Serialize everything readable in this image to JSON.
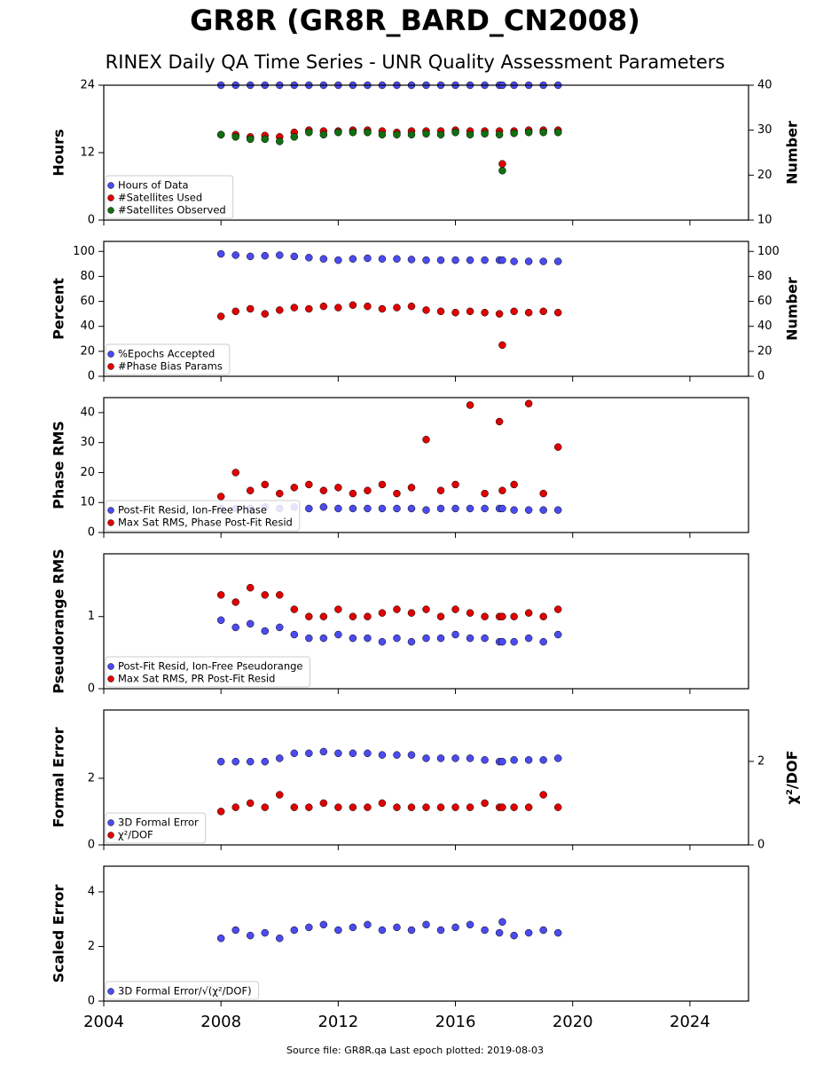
{
  "title": "GR8R (GR8R_BARD_CN2008)",
  "subtitle": "RINEX Daily QA Time Series - UNR Quality Assessment Parameters",
  "footer": "Source file: GR8R.qa Last epoch plotted: 2019-08-03",
  "chart_data": [
    {
      "type": "scatter",
      "ylabel": "Hours",
      "y2label": "Number",
      "legend": "lower left",
      "x": [
        2008.0,
        2008.5,
        2009.0,
        2009.5,
        2010.0,
        2010.5,
        2011.0,
        2011.5,
        2012.0,
        2012.5,
        2013.0,
        2013.5,
        2014.0,
        2014.5,
        2015.0,
        2015.5,
        2016.0,
        2016.5,
        2017.0,
        2017.5,
        2017.6,
        2018.0,
        2018.5,
        2019.0,
        2019.5
      ],
      "xlim": [
        2004,
        2026
      ],
      "xticks": [
        2004,
        2008,
        2012,
        2016,
        2020,
        2024
      ],
      "ylim": [
        0,
        24
      ],
      "yticks": [
        0,
        12,
        24
      ],
      "y2lim": [
        10,
        40
      ],
      "y2ticks": [
        10,
        20,
        30,
        40
      ],
      "series": [
        {
          "name": "Hours of Data",
          "color": "#4b4bf0",
          "values": [
            24,
            24,
            24,
            24,
            24,
            24,
            24,
            24,
            24,
            24,
            24,
            24,
            24,
            24,
            24,
            24,
            24,
            24,
            24,
            24,
            24,
            24,
            24,
            24,
            24
          ]
        },
        {
          "name": "#Satellites Used",
          "color": "#e00000",
          "axis": "y2",
          "values": [
            29,
            29,
            28.5,
            28.8,
            28.5,
            29.5,
            30,
            29.8,
            29.8,
            30,
            30,
            29.8,
            29.5,
            29.8,
            29.8,
            29.8,
            30,
            29.8,
            29.8,
            29.8,
            22.5,
            29.8,
            30,
            30,
            30
          ]
        },
        {
          "name": "#Satellites Observed",
          "color": "#107010",
          "axis": "y2",
          "values": [
            29,
            28.5,
            28,
            28,
            27.5,
            28.5,
            29.5,
            29,
            29.5,
            29.5,
            29.5,
            29,
            29,
            29,
            29.2,
            29,
            29.5,
            29,
            29.2,
            29,
            21,
            29.3,
            29.5,
            29.5,
            29.5
          ]
        }
      ]
    },
    {
      "type": "scatter",
      "ylabel": "Percent",
      "y2label": "Number",
      "legend": "lower left",
      "x": [
        2008.0,
        2008.5,
        2009.0,
        2009.5,
        2010.0,
        2010.5,
        2011.0,
        2011.5,
        2012.0,
        2012.5,
        2013.0,
        2013.5,
        2014.0,
        2014.5,
        2015.0,
        2015.5,
        2016.0,
        2016.5,
        2017.0,
        2017.5,
        2017.6,
        2018.0,
        2018.5,
        2019.0,
        2019.5
      ],
      "xlim": [
        2004,
        2026
      ],
      "xticks": [
        2004,
        2008,
        2012,
        2016,
        2020,
        2024
      ],
      "ylim": [
        0,
        108
      ],
      "yticks": [
        0,
        20,
        40,
        60,
        80,
        100
      ],
      "y2lim": [
        0,
        108
      ],
      "y2ticks": [
        0,
        20,
        40,
        60,
        80,
        100
      ],
      "series": [
        {
          "name": "%Epochs Accepted",
          "color": "#4b4bf0",
          "values": [
            98,
            97,
            96,
            96.5,
            97,
            96,
            95,
            94,
            93,
            94,
            94.5,
            94,
            94,
            93.5,
            93,
            93,
            93,
            93,
            93,
            93,
            93,
            92,
            92,
            92,
            92
          ]
        },
        {
          "name": "#Phase Bias Params",
          "color": "#e00000",
          "axis": "y2",
          "values": [
            48,
            52,
            54,
            50,
            53,
            55,
            54,
            56,
            55,
            57,
            56,
            54,
            55,
            56,
            53,
            52,
            51,
            52,
            51,
            50,
            25,
            52,
            51,
            52,
            51
          ]
        }
      ]
    },
    {
      "type": "scatter",
      "ylabel": "Phase RMS",
      "legend": "lower left",
      "x": [
        2008.0,
        2008.5,
        2009.0,
        2009.5,
        2010.0,
        2010.5,
        2011.0,
        2011.5,
        2012.0,
        2012.5,
        2013.0,
        2013.5,
        2014.0,
        2014.5,
        2015.0,
        2015.5,
        2016.0,
        2016.5,
        2017.0,
        2017.5,
        2017.6,
        2018.0,
        2018.5,
        2019.0,
        2019.5
      ],
      "xlim": [
        2004,
        2026
      ],
      "xticks": [
        2004,
        2008,
        2012,
        2016,
        2020,
        2024
      ],
      "ylim": [
        0,
        45
      ],
      "yticks": [
        0,
        10,
        20,
        30,
        40
      ],
      "series": [
        {
          "name": "Post-Fit Resid, Ion-Free Phase",
          "color": "#4b4bf0",
          "values": [
            8,
            8,
            8,
            8.5,
            8,
            8.5,
            8,
            8.5,
            8,
            8,
            8,
            8,
            8,
            8,
            7.5,
            8,
            8,
            8,
            8,
            8,
            8,
            7.5,
            7.5,
            7.5,
            7.5
          ]
        },
        {
          "name": "Max Sat RMS, Phase Post-Fit Resid",
          "color": "#e00000",
          "values": [
            12,
            20,
            14,
            16,
            13,
            15,
            16,
            14,
            15,
            13,
            14,
            16,
            13,
            15,
            31,
            14,
            16,
            42.5,
            13,
            37,
            14,
            16,
            43,
            13,
            28.5
          ]
        }
      ]
    },
    {
      "type": "scatter",
      "ylabel": "Pseudorange RMS",
      "legend": "lower left",
      "x": [
        2008.0,
        2008.5,
        2009.0,
        2009.5,
        2010.0,
        2010.5,
        2011.0,
        2011.5,
        2012.0,
        2012.5,
        2013.0,
        2013.5,
        2014.0,
        2014.5,
        2015.0,
        2015.5,
        2016.0,
        2016.5,
        2017.0,
        2017.5,
        2017.6,
        2018.0,
        2018.5,
        2019.0,
        2019.5
      ],
      "xlim": [
        2004,
        2026
      ],
      "xticks": [
        2004,
        2008,
        2012,
        2016,
        2020,
        2024
      ],
      "ylim": [
        0,
        1.87
      ],
      "yticks": [
        0,
        1
      ],
      "series": [
        {
          "name": "Post-Fit Resid, Ion-Free Pseudorange",
          "color": "#4b4bf0",
          "values": [
            0.95,
            0.85,
            0.9,
            0.8,
            0.85,
            0.75,
            0.7,
            0.7,
            0.75,
            0.7,
            0.7,
            0.65,
            0.7,
            0.65,
            0.7,
            0.7,
            0.75,
            0.7,
            0.7,
            0.65,
            0.65,
            0.65,
            0.7,
            0.65,
            0.75
          ]
        },
        {
          "name": "Max Sat RMS, PR Post-Fit Resid",
          "color": "#e00000",
          "values": [
            1.3,
            1.2,
            1.4,
            1.3,
            1.3,
            1.1,
            1.0,
            1.0,
            1.1,
            1.0,
            1.0,
            1.05,
            1.1,
            1.05,
            1.1,
            1.0,
            1.1,
            1.05,
            1.0,
            1.0,
            1.0,
            1.0,
            1.05,
            1.0,
            1.1
          ]
        }
      ]
    },
    {
      "type": "scatter",
      "ylabel": "Formal Error",
      "y2label": "χ²/DOF",
      "legend": "lower left",
      "x": [
        2008.0,
        2008.5,
        2009.0,
        2009.5,
        2010.0,
        2010.5,
        2011.0,
        2011.5,
        2012.0,
        2012.5,
        2013.0,
        2013.5,
        2014.0,
        2014.5,
        2015.0,
        2015.5,
        2016.0,
        2016.5,
        2017.0,
        2017.5,
        2017.6,
        2018.0,
        2018.5,
        2019.0,
        2019.5
      ],
      "xlim": [
        2004,
        2026
      ],
      "xticks": [
        2004,
        2008,
        2012,
        2016,
        2020,
        2024
      ],
      "ylim": [
        0,
        4.05
      ],
      "yticks": [
        0,
        2
      ],
      "y2lim": [
        0,
        3.23
      ],
      "y2ticks": [
        0,
        2
      ],
      "series": [
        {
          "name": "3D Formal Error",
          "color": "#4b4bf0",
          "values": [
            2.5,
            2.5,
            2.5,
            2.5,
            2.6,
            2.75,
            2.75,
            2.8,
            2.75,
            2.75,
            2.75,
            2.7,
            2.7,
            2.7,
            2.6,
            2.6,
            2.6,
            2.6,
            2.55,
            2.5,
            2.5,
            2.55,
            2.55,
            2.55,
            2.6
          ]
        },
        {
          "name": "χ²/DOF",
          "color": "#e00000",
          "axis": "y2",
          "values": [
            0.8,
            0.9,
            1.0,
            0.9,
            1.2,
            0.9,
            0.9,
            1.0,
            0.9,
            0.9,
            0.9,
            1.0,
            0.9,
            0.9,
            0.9,
            0.9,
            0.9,
            0.9,
            1.0,
            0.9,
            0.9,
            0.9,
            0.9,
            1.2,
            0.9
          ]
        }
      ]
    },
    {
      "type": "scatter",
      "ylabel": "Scaled Error",
      "legend": "lower left",
      "x": [
        2008.0,
        2008.5,
        2009.0,
        2009.5,
        2010.0,
        2010.5,
        2011.0,
        2011.5,
        2012.0,
        2012.5,
        2013.0,
        2013.5,
        2014.0,
        2014.5,
        2015.0,
        2015.5,
        2016.0,
        2016.5,
        2017.0,
        2017.5,
        2017.6,
        2018.0,
        2018.5,
        2019.0,
        2019.5
      ],
      "xlim": [
        2004,
        2026
      ],
      "xticks": [
        2004,
        2008,
        2012,
        2016,
        2020,
        2024
      ],
      "ylim": [
        0,
        4.94
      ],
      "yticks": [
        0,
        2,
        4
      ],
      "series": [
        {
          "name": "3D Formal Error/√(χ²/DOF)",
          "color": "#4b4bf0",
          "values": [
            2.3,
            2.6,
            2.4,
            2.5,
            2.3,
            2.6,
            2.7,
            2.8,
            2.6,
            2.7,
            2.8,
            2.6,
            2.7,
            2.6,
            2.8,
            2.6,
            2.7,
            2.8,
            2.6,
            2.5,
            2.9,
            2.4,
            2.5,
            2.6,
            2.5
          ]
        }
      ]
    }
  ]
}
